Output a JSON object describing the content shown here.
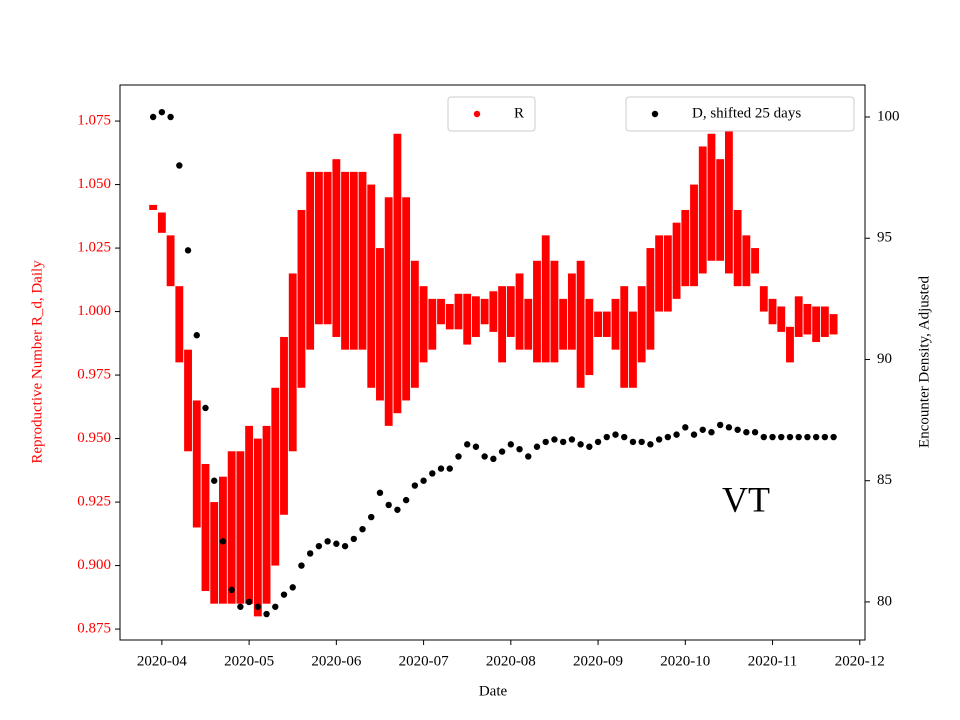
{
  "chart_data": {
    "type": "errorbar-dual",
    "x_label": "Date",
    "y_label": "Reproductive Number R_d, Daily",
    "y2_label": "Encounter Density, Adjusted",
    "annotation": "VT",
    "xlim": [
      3.52,
      12.06
    ],
    "xticks": [
      {
        "value": 4,
        "label": "2020-04"
      },
      {
        "value": 5,
        "label": "2020-05"
      },
      {
        "value": 6,
        "label": "2020-06"
      },
      {
        "value": 7,
        "label": "2020-07"
      },
      {
        "value": 8,
        "label": "2020-08"
      },
      {
        "value": 9,
        "label": "2020-09"
      },
      {
        "value": 10,
        "label": "2020-10"
      },
      {
        "value": 11,
        "label": "2020-11"
      },
      {
        "value": 12,
        "label": "2020-12"
      }
    ],
    "ylim": [
      0.8707,
      1.0892
    ],
    "yticks": [
      0.875,
      {
        "value": 0.9,
        "label": "0.900"
      },
      0.925,
      {
        "value": 0.95,
        "label": "0.950"
      },
      0.975,
      {
        "value": 1.0,
        "label": "1.000"
      },
      1.025,
      {
        "value": 1.05,
        "label": "1.050"
      },
      1.075
    ],
    "y2lim": [
      78.43,
      101.32
    ],
    "y2ticks": [
      80,
      85,
      90,
      95,
      100
    ],
    "x": [
      3.9,
      4.0,
      4.1,
      4.2,
      4.3,
      4.4,
      4.5,
      4.6,
      4.7,
      4.8,
      4.9,
      5.0,
      5.1,
      5.2,
      5.3,
      5.4,
      5.5,
      5.6,
      5.7,
      5.8,
      5.9,
      6.0,
      6.1,
      6.2,
      6.3,
      6.4,
      6.5,
      6.6,
      6.7,
      6.8,
      6.9,
      7.0,
      7.1,
      7.2,
      7.3,
      7.4,
      7.5,
      7.6,
      7.7,
      7.8,
      7.9,
      8.0,
      8.1,
      8.2,
      8.3,
      8.4,
      8.5,
      8.6,
      8.7,
      8.8,
      8.9,
      9.0,
      9.1,
      9.2,
      9.3,
      9.4,
      9.5,
      9.6,
      9.7,
      9.8,
      9.9,
      10.0,
      10.1,
      10.2,
      10.3,
      10.4,
      10.5,
      10.6,
      10.7,
      10.8,
      10.9,
      11.0,
      11.1,
      11.2,
      11.3,
      11.4,
      11.5,
      11.6,
      11.7
    ],
    "series": [
      {
        "name": "R",
        "color": "#ff0000",
        "axis": "y",
        "values": [
          1.041,
          1.035,
          1.02,
          0.995,
          0.965,
          0.94,
          0.915,
          0.905,
          0.91,
          0.915,
          0.915,
          0.92,
          0.915,
          0.92,
          0.935,
          0.955,
          0.98,
          1.005,
          1.02,
          1.025,
          1.025,
          1.025,
          1.02,
          1.02,
          1.02,
          1.01,
          0.995,
          1.0,
          1.015,
          1.005,
          0.995,
          0.995,
          0.995,
          1.0,
          0.998,
          1.0,
          0.997,
          0.998,
          1.0,
          1.0,
          0.995,
          1.0,
          1.0,
          0.995,
          1.0,
          1.005,
          1.0,
          0.995,
          1.0,
          0.995,
          0.99,
          0.995,
          0.995,
          0.995,
          0.99,
          0.985,
          0.995,
          1.005,
          1.015,
          1.015,
          1.02,
          1.025,
          1.03,
          1.04,
          1.045,
          1.04,
          1.045,
          1.025,
          1.02,
          1.02,
          1.005,
          1.0,
          0.997,
          0.987,
          0.998,
          0.997,
          0.995,
          0.996,
          0.995
        ],
        "errors": [
          0.001,
          0.004,
          0.01,
          0.015,
          0.02,
          0.025,
          0.025,
          0.02,
          0.025,
          0.03,
          0.03,
          0.035,
          0.035,
          0.035,
          0.035,
          0.035,
          0.035,
          0.035,
          0.035,
          0.03,
          0.03,
          0.035,
          0.035,
          0.035,
          0.035,
          0.04,
          0.03,
          0.045,
          0.055,
          0.04,
          0.025,
          0.015,
          0.01,
          0.005,
          0.005,
          0.007,
          0.01,
          0.008,
          0.005,
          0.008,
          0.015,
          0.01,
          0.015,
          0.01,
          0.02,
          0.025,
          0.02,
          0.01,
          0.015,
          0.025,
          0.015,
          0.005,
          0.005,
          0.01,
          0.02,
          0.015,
          0.015,
          0.02,
          0.015,
          0.015,
          0.015,
          0.015,
          0.02,
          0.025,
          0.025,
          0.02,
          0.03,
          0.015,
          0.01,
          0.005,
          0.005,
          0.005,
          0.005,
          0.007,
          0.008,
          0.006,
          0.007,
          0.006,
          0.004
        ]
      },
      {
        "name": "D, shifted 25 days",
        "color": "#000000",
        "axis": "y2",
        "values": [
          100.0,
          100.2,
          100.0,
          98.0,
          94.5,
          91.0,
          88.0,
          85.0,
          82.5,
          80.5,
          79.8,
          80.0,
          79.8,
          79.5,
          79.8,
          80.3,
          80.6,
          81.5,
          82.0,
          82.3,
          82.5,
          82.4,
          82.3,
          82.6,
          83.0,
          83.5,
          84.5,
          84.0,
          83.8,
          84.2,
          84.8,
          85.0,
          85.3,
          85.5,
          85.5,
          86.0,
          86.5,
          86.4,
          86.0,
          85.9,
          86.2,
          86.5,
          86.3,
          86.0,
          86.4,
          86.6,
          86.7,
          86.6,
          86.7,
          86.5,
          86.4,
          86.6,
          86.8,
          86.9,
          86.8,
          86.6,
          86.6,
          86.5,
          86.7,
          86.8,
          86.9,
          87.2,
          86.9,
          87.1,
          87.0,
          87.3,
          87.2,
          87.1,
          87.0,
          87.0,
          86.8,
          86.8,
          86.8,
          86.8,
          86.8,
          86.8,
          86.8,
          86.8,
          86.8
        ]
      }
    ]
  }
}
